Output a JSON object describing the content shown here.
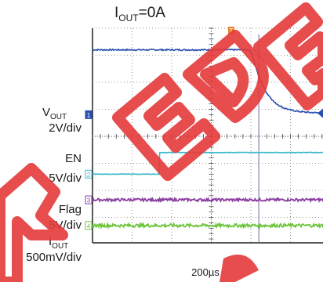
{
  "colors": {
    "vout": "#2a4fb0",
    "en": "#3ab9c9",
    "flag": "#8a3fa0",
    "iout": "#6cc43a",
    "trigger": "#e8852a",
    "watermark": "#e43a3a",
    "grid": "#7a7a7a"
  },
  "chart_data": {
    "type": "line",
    "title": "I_OUT=0A",
    "title_main": "I",
    "title_sub": "OUT",
    "title_rest": "=0A",
    "time_scale_label": "200µs",
    "timebase_us_per_div": 200,
    "grid": true,
    "x_divisions": 10,
    "visible_x_range_div": [
      0,
      7.5
    ],
    "y_divisions": 8,
    "y_range_div": [
      -4,
      4
    ],
    "trigger_marker": "T",
    "cursor_time_div": 4.2,
    "watermark_text": "REDEX",
    "channels": [
      {
        "id": "1",
        "label": "V_OUT",
        "label_main": "V",
        "label_sub": "OUT",
        "scale_label": "2V/div",
        "scale_per_div": 2,
        "unit": "V",
        "marker_level_div": 0.8,
        "points": [
          [
            0,
            3.2
          ],
          [
            3.98,
            3.2
          ],
          [
            4.05,
            2.95
          ],
          [
            4.2,
            2.2
          ],
          [
            4.4,
            1.6
          ],
          [
            4.6,
            1.25
          ],
          [
            4.8,
            1.07
          ],
          [
            5.0,
            0.97
          ],
          [
            5.2,
            0.92
          ],
          [
            5.5,
            0.88
          ],
          [
            6.0,
            0.86
          ],
          [
            7.5,
            0.85
          ]
        ]
      },
      {
        "id": "2",
        "label": "EN",
        "scale_label": "5V/div",
        "scale_per_div": 5,
        "unit": "V",
        "marker_level_div": -1.4,
        "points": [
          [
            0,
            -1.4
          ],
          [
            1.68,
            -1.4
          ],
          [
            1.68,
            -0.6
          ],
          [
            7.5,
            -0.6
          ]
        ]
      },
      {
        "id": "3",
        "label": "Flag",
        "scale_label": "5V/div",
        "scale_per_div": 5,
        "unit": "V",
        "marker_level_div": -2.35,
        "points": [
          [
            0,
            -2.35
          ],
          [
            7.5,
            -2.35
          ]
        ]
      },
      {
        "id": "4",
        "label": "I_OUT",
        "label_main": "I",
        "label_sub": "OUT",
        "scale_label": "500mV/div",
        "scale_per_div": 0.5,
        "unit": "V",
        "marker_level_div": -3.3,
        "points": [
          [
            0,
            -3.3
          ],
          [
            7.5,
            -3.3
          ]
        ]
      }
    ]
  }
}
